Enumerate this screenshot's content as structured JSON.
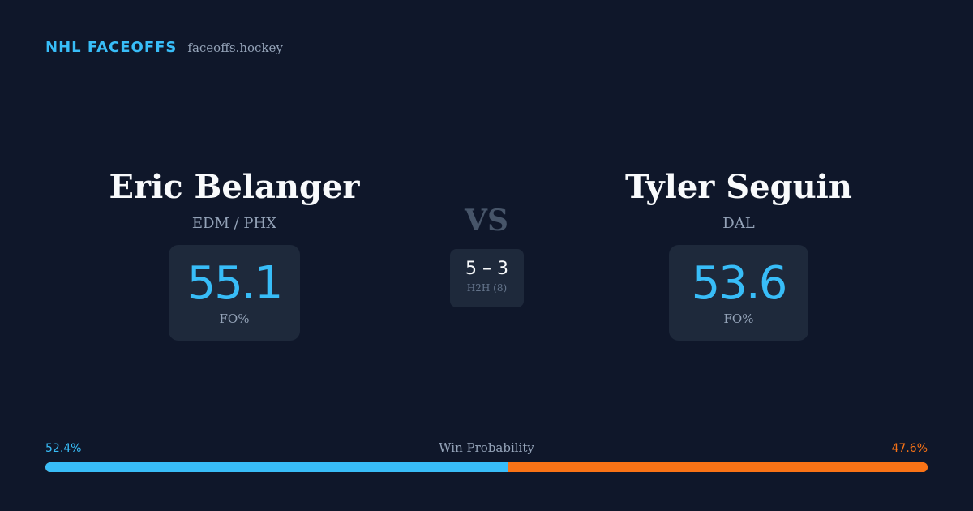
{
  "brand": {
    "name": "NHL FACEOFFS",
    "site": "faceoffs.hockey"
  },
  "players": [
    {
      "name": "Eric Belanger",
      "team": "EDM / PHX",
      "fo_pct": "55.1",
      "fo_label": "FO%"
    },
    {
      "name": "Tyler Seguin",
      "team": "DAL",
      "fo_pct": "53.6",
      "fo_label": "FO%"
    }
  ],
  "vs_label": "VS",
  "head_to_head": {
    "score": "5 – 3",
    "label": "H2H (8)"
  },
  "win_probability": {
    "title": "Win Probability",
    "left_label": "52.4%",
    "right_label": "47.6%",
    "left_value": 52.4,
    "right_value": 47.6,
    "left_color": "#38bdf8",
    "right_color": "#f97316"
  }
}
